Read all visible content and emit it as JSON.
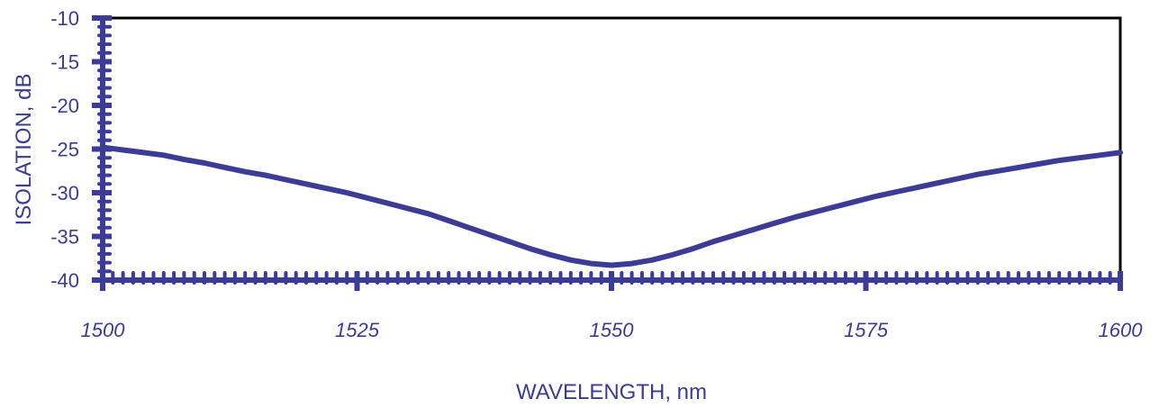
{
  "chart_data": {
    "type": "line",
    "title": "",
    "xlabel": "WAVELENGTH, nm",
    "ylabel": "ISOLATION, dB",
    "xlim": [
      1500,
      1600
    ],
    "ylim": [
      -40,
      -10
    ],
    "x_ticks": [
      1500,
      1525,
      1550,
      1575,
      1600
    ],
    "y_ticks": [
      -10,
      -15,
      -20,
      -25,
      -30,
      -35,
      -40
    ],
    "grid": false,
    "legend": "none",
    "colors": {
      "series": "#3c3c96",
      "frame": "#000000",
      "text": "#3c3c8c"
    },
    "series": [
      {
        "x": [
          1500,
          1502,
          1504,
          1506,
          1508,
          1510,
          1512,
          1514,
          1516,
          1518,
          1520,
          1522,
          1524,
          1526,
          1528,
          1530,
          1532,
          1534,
          1536,
          1538,
          1540,
          1542,
          1544,
          1546,
          1548,
          1550,
          1552,
          1554,
          1556,
          1558,
          1560,
          1562,
          1564,
          1566,
          1568,
          1570,
          1572,
          1574,
          1576,
          1578,
          1580,
          1582,
          1584,
          1586,
          1588,
          1590,
          1592,
          1594,
          1596,
          1598,
          1600
        ],
        "values": [
          -24.8,
          -25.1,
          -25.4,
          -25.7,
          -26.2,
          -26.6,
          -27.1,
          -27.6,
          -28.0,
          -28.5,
          -29.0,
          -29.5,
          -30.0,
          -30.6,
          -31.2,
          -31.8,
          -32.4,
          -33.2,
          -34.0,
          -34.8,
          -35.6,
          -36.4,
          -37.1,
          -37.7,
          -38.1,
          -38.3,
          -38.1,
          -37.7,
          -37.1,
          -36.4,
          -35.6,
          -34.9,
          -34.2,
          -33.5,
          -32.8,
          -32.2,
          -31.6,
          -31.0,
          -30.4,
          -29.9,
          -29.4,
          -28.9,
          -28.4,
          -27.9,
          -27.5,
          -27.1,
          -26.7,
          -26.3,
          -26.0,
          -25.7,
          -25.4
        ]
      }
    ]
  }
}
